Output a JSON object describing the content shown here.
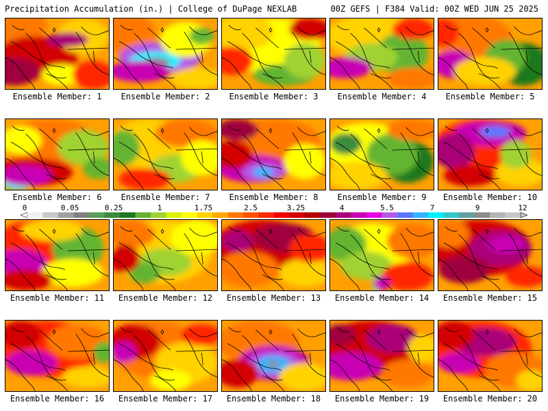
{
  "header": {
    "left": "Precipitation Accumulation (in.) | College of DuPage NEXLAB",
    "right": "00Z GEFS | F384 Valid: 00Z WED JUN 25 2025"
  },
  "colorbar": {
    "tick_labels": [
      "0",
      "0.05",
      "0.25",
      "1",
      "1.75",
      "2.5",
      "3.25",
      "4",
      "5.5",
      "7",
      "9",
      "12"
    ],
    "colors": [
      "#f0f0f0",
      "#c8c8c8",
      "#a0a0a0",
      "#808080",
      "#5aa05a",
      "#3c8c3c",
      "#1e781e",
      "#64b432",
      "#a0d232",
      "#dcf000",
      "#ffff00",
      "#ffd200",
      "#ffaa00",
      "#ff7800",
      "#ff5000",
      "#ff2800",
      "#f00000",
      "#d20000",
      "#b40000",
      "#a0003c",
      "#aa0078",
      "#c800b4",
      "#e600e6",
      "#b45ae6",
      "#5a78ff",
      "#32b4ff",
      "#00f0ff",
      "#32c8c8",
      "#64a0a0",
      "#8c8c8c",
      "#b4b4b4",
      "#c8c8c8"
    ]
  },
  "panels": [
    {
      "label": "Ensemble Member: 1",
      "blobs": [
        [
          "#ff7800",
          0.05,
          0.1,
          0.35,
          0.3
        ],
        [
          "#d20000",
          0.3,
          0.55,
          0.4,
          0.3
        ],
        [
          "#a0003c",
          0.08,
          0.75,
          0.25,
          0.2
        ],
        [
          "#ffd200",
          0.75,
          0.25,
          0.25,
          0.25
        ],
        [
          "#ffff00",
          0.55,
          0.8,
          0.2,
          0.15
        ],
        [
          "#ff2800",
          0.85,
          0.8,
          0.2,
          0.2
        ],
        [
          "#aa0078",
          0.6,
          0.3,
          0.2,
          0.1
        ]
      ]
    },
    {
      "label": "Ensemble Member: 2",
      "blobs": [
        [
          "#ff7800",
          0.1,
          0.2,
          0.3,
          0.3
        ],
        [
          "#b45ae6",
          0.45,
          0.55,
          0.4,
          0.22
        ],
        [
          "#00f0ff",
          0.4,
          0.6,
          0.25,
          0.13
        ],
        [
          "#8c8c8c",
          0.42,
          0.62,
          0.12,
          0.07
        ],
        [
          "#c800b4",
          0.25,
          0.75,
          0.3,
          0.15
        ],
        [
          "#ffff00",
          0.7,
          0.3,
          0.25,
          0.25
        ],
        [
          "#64b432",
          0.85,
          0.25,
          0.12,
          0.12
        ],
        [
          "#ffd200",
          0.8,
          0.85,
          0.25,
          0.15
        ]
      ]
    },
    {
      "label": "Ensemble Member: 3",
      "blobs": [
        [
          "#ffff00",
          0.5,
          0.4,
          0.45,
          0.4
        ],
        [
          "#ffd200",
          0.2,
          0.2,
          0.3,
          0.25
        ],
        [
          "#64b432",
          0.6,
          0.8,
          0.3,
          0.15
        ],
        [
          "#a0d232",
          0.8,
          0.6,
          0.2,
          0.25
        ],
        [
          "#ff2800",
          0.1,
          0.6,
          0.2,
          0.2
        ],
        [
          "#d20000",
          0.85,
          0.15,
          0.2,
          0.15
        ]
      ]
    },
    {
      "label": "Ensemble Member: 4",
      "blobs": [
        [
          "#ffd200",
          0.4,
          0.25,
          0.45,
          0.3
        ],
        [
          "#64b432",
          0.7,
          0.5,
          0.25,
          0.3
        ],
        [
          "#a0d232",
          0.4,
          0.55,
          0.25,
          0.2
        ],
        [
          "#c800b4",
          0.15,
          0.7,
          0.25,
          0.15
        ],
        [
          "#ff2800",
          0.8,
          0.15,
          0.2,
          0.15
        ],
        [
          "#ff7800",
          0.8,
          0.85,
          0.25,
          0.15
        ]
      ]
    },
    {
      "label": "Ensemble Member: 5",
      "blobs": [
        [
          "#ff7800",
          0.3,
          0.25,
          0.4,
          0.3
        ],
        [
          "#1e781e",
          0.82,
          0.65,
          0.25,
          0.3
        ],
        [
          "#64b432",
          0.65,
          0.55,
          0.2,
          0.25
        ],
        [
          "#c800b4",
          0.15,
          0.65,
          0.2,
          0.2
        ],
        [
          "#ffd200",
          0.45,
          0.75,
          0.3,
          0.2
        ],
        [
          "#ff2800",
          0.05,
          0.2,
          0.15,
          0.2
        ]
      ]
    },
    {
      "label": "Ensemble Member: 6",
      "blobs": [
        [
          "#ff7800",
          0.45,
          0.35,
          0.45,
          0.35
        ],
        [
          "#a0d232",
          0.75,
          0.4,
          0.25,
          0.25
        ],
        [
          "#d20000",
          0.25,
          0.75,
          0.4,
          0.2
        ],
        [
          "#00f0ff",
          0.12,
          0.88,
          0.15,
          0.12
        ],
        [
          "#c800b4",
          0.2,
          0.8,
          0.25,
          0.15
        ],
        [
          "#ffff00",
          0.15,
          0.3,
          0.2,
          0.2
        ],
        [
          "#64b432",
          0.9,
          0.7,
          0.15,
          0.15
        ]
      ]
    },
    {
      "label": "Ensemble Member: 7",
      "blobs": [
        [
          "#ffd200",
          0.35,
          0.35,
          0.4,
          0.35
        ],
        [
          "#64b432",
          0.1,
          0.4,
          0.15,
          0.25
        ],
        [
          "#a0d232",
          0.6,
          0.7,
          0.25,
          0.2
        ],
        [
          "#ff7800",
          0.7,
          0.2,
          0.3,
          0.2
        ],
        [
          "#ff2800",
          0.3,
          0.85,
          0.25,
          0.15
        ],
        [
          "#ffff00",
          0.85,
          0.55,
          0.2,
          0.25
        ]
      ]
    },
    {
      "label": "Ensemble Member: 8",
      "blobs": [
        [
          "#ff7800",
          0.5,
          0.3,
          0.45,
          0.3
        ],
        [
          "#c800b4",
          0.3,
          0.7,
          0.35,
          0.2
        ],
        [
          "#b45ae6",
          0.4,
          0.75,
          0.2,
          0.13
        ],
        [
          "#32b4ff",
          0.4,
          0.75,
          0.1,
          0.07
        ],
        [
          "#d20000",
          0.1,
          0.5,
          0.2,
          0.2
        ],
        [
          "#ffff00",
          0.8,
          0.6,
          0.2,
          0.25
        ],
        [
          "#a0003c",
          0.15,
          0.15,
          0.2,
          0.15
        ]
      ]
    },
    {
      "label": "Ensemble Member: 9",
      "blobs": [
        [
          "#ffff00",
          0.35,
          0.4,
          0.4,
          0.35
        ],
        [
          "#1e781e",
          0.75,
          0.6,
          0.25,
          0.3
        ],
        [
          "#64b432",
          0.6,
          0.5,
          0.25,
          0.3
        ],
        [
          "#3c8c3c",
          0.15,
          0.35,
          0.15,
          0.15
        ],
        [
          "#ffd200",
          0.25,
          0.8,
          0.3,
          0.2
        ],
        [
          "#ff7800",
          0.8,
          0.15,
          0.25,
          0.15
        ]
      ]
    },
    {
      "label": "Ensemble Member: 10",
      "blobs": [
        [
          "#ff2800",
          0.4,
          0.4,
          0.45,
          0.4
        ],
        [
          "#c800b4",
          0.5,
          0.2,
          0.35,
          0.18
        ],
        [
          "#5a78ff",
          0.55,
          0.18,
          0.15,
          0.08
        ],
        [
          "#aa0078",
          0.15,
          0.45,
          0.2,
          0.25
        ],
        [
          "#ffd200",
          0.8,
          0.75,
          0.25,
          0.2
        ],
        [
          "#a0d232",
          0.75,
          0.5,
          0.15,
          0.2
        ],
        [
          "#d20000",
          0.3,
          0.8,
          0.25,
          0.15
        ]
      ]
    },
    {
      "label": "Ensemble Member: 11",
      "blobs": [
        [
          "#ff2800",
          0.3,
          0.35,
          0.4,
          0.35
        ],
        [
          "#c800b4",
          0.15,
          0.6,
          0.25,
          0.18
        ],
        [
          "#64b432",
          0.7,
          0.4,
          0.25,
          0.3
        ],
        [
          "#ffff00",
          0.65,
          0.75,
          0.3,
          0.2
        ],
        [
          "#ffd200",
          0.45,
          0.15,
          0.3,
          0.15
        ],
        [
          "#d20000",
          0.2,
          0.85,
          0.25,
          0.15
        ]
      ]
    },
    {
      "label": "Ensemble Member: 12",
      "blobs": [
        [
          "#ffd200",
          0.45,
          0.45,
          0.5,
          0.45
        ],
        [
          "#a0d232",
          0.5,
          0.6,
          0.25,
          0.2
        ],
        [
          "#64b432",
          0.3,
          0.75,
          0.15,
          0.15
        ],
        [
          "#ff7800",
          0.15,
          0.2,
          0.25,
          0.2
        ],
        [
          "#d20000",
          0.1,
          0.55,
          0.15,
          0.2
        ],
        [
          "#ffff00",
          0.8,
          0.25,
          0.25,
          0.25
        ]
      ]
    },
    {
      "label": "Ensemble Member: 13",
      "blobs": [
        [
          "#d20000",
          0.4,
          0.4,
          0.5,
          0.4
        ],
        [
          "#a0003c",
          0.6,
          0.25,
          0.3,
          0.2
        ],
        [
          "#ff7800",
          0.25,
          0.7,
          0.3,
          0.25
        ],
        [
          "#ffd200",
          0.8,
          0.75,
          0.25,
          0.2
        ],
        [
          "#aa0078",
          0.15,
          0.3,
          0.15,
          0.15
        ],
        [
          "#ff2800",
          0.85,
          0.4,
          0.2,
          0.2
        ]
      ]
    },
    {
      "label": "Ensemble Member: 14",
      "blobs": [
        [
          "#ffff00",
          0.4,
          0.4,
          0.4,
          0.35
        ],
        [
          "#64b432",
          0.15,
          0.35,
          0.2,
          0.25
        ],
        [
          "#a0d232",
          0.35,
          0.65,
          0.25,
          0.2
        ],
        [
          "#ff7800",
          0.8,
          0.3,
          0.25,
          0.25
        ],
        [
          "#ff2800",
          0.75,
          0.8,
          0.25,
          0.2
        ],
        [
          "#00f0ff",
          0.45,
          0.92,
          0.04,
          0.1
        ],
        [
          "#c800b4",
          0.5,
          0.9,
          0.08,
          0.1
        ]
      ]
    },
    {
      "label": "Ensemble Member: 15",
      "blobs": [
        [
          "#d20000",
          0.4,
          0.4,
          0.5,
          0.4
        ],
        [
          "#aa0078",
          0.6,
          0.4,
          0.3,
          0.25
        ],
        [
          "#c800b4",
          0.65,
          0.35,
          0.18,
          0.12
        ],
        [
          "#a0003c",
          0.25,
          0.7,
          0.25,
          0.2
        ],
        [
          "#ff7800",
          0.1,
          0.2,
          0.2,
          0.2
        ],
        [
          "#ff2800",
          0.85,
          0.8,
          0.2,
          0.15
        ]
      ]
    },
    {
      "label": "Ensemble Member: 16",
      "blobs": [
        [
          "#ff2800",
          0.4,
          0.4,
          0.5,
          0.4
        ],
        [
          "#c800b4",
          0.25,
          0.6,
          0.25,
          0.18
        ],
        [
          "#ff7800",
          0.7,
          0.3,
          0.3,
          0.25
        ],
        [
          "#d20000",
          0.15,
          0.2,
          0.2,
          0.2
        ],
        [
          "#ffd200",
          0.8,
          0.8,
          0.25,
          0.15
        ],
        [
          "#64b432",
          0.95,
          0.45,
          0.1,
          0.15
        ]
      ]
    },
    {
      "label": "Ensemble Member: 17",
      "blobs": [
        [
          "#ff7800",
          0.4,
          0.4,
          0.45,
          0.4
        ],
        [
          "#d20000",
          0.2,
          0.3,
          0.25,
          0.25
        ],
        [
          "#ffd200",
          0.7,
          0.6,
          0.3,
          0.3
        ],
        [
          "#c800b4",
          0.1,
          0.45,
          0.12,
          0.15
        ],
        [
          "#ff2800",
          0.85,
          0.2,
          0.2,
          0.15
        ],
        [
          "#ffff00",
          0.55,
          0.85,
          0.2,
          0.15
        ]
      ]
    },
    {
      "label": "Ensemble Member: 18",
      "blobs": [
        [
          "#ff7800",
          0.35,
          0.3,
          0.4,
          0.3
        ],
        [
          "#c800b4",
          0.5,
          0.6,
          0.35,
          0.25
        ],
        [
          "#b45ae6",
          0.5,
          0.62,
          0.25,
          0.18
        ],
        [
          "#32b4ff",
          0.5,
          0.62,
          0.16,
          0.12
        ],
        [
          "#8c8c8c",
          0.5,
          0.62,
          0.06,
          0.05
        ],
        [
          "#ffd200",
          0.8,
          0.8,
          0.25,
          0.2
        ],
        [
          "#d20000",
          0.15,
          0.75,
          0.2,
          0.2
        ]
      ]
    },
    {
      "label": "Ensemble Member: 19",
      "blobs": [
        [
          "#d20000",
          0.4,
          0.4,
          0.5,
          0.4
        ],
        [
          "#c800b4",
          0.2,
          0.65,
          0.3,
          0.2
        ],
        [
          "#aa0078",
          0.6,
          0.25,
          0.25,
          0.2
        ],
        [
          "#ff7800",
          0.75,
          0.75,
          0.25,
          0.2
        ],
        [
          "#ffd200",
          0.9,
          0.4,
          0.15,
          0.2
        ],
        [
          "#a0003c",
          0.1,
          0.2,
          0.15,
          0.15
        ]
      ]
    },
    {
      "label": "Ensemble Member: 20",
      "blobs": [
        [
          "#ff2800",
          0.4,
          0.4,
          0.5,
          0.4
        ],
        [
          "#aa0078",
          0.45,
          0.3,
          0.3,
          0.2
        ],
        [
          "#c800b4",
          0.2,
          0.6,
          0.2,
          0.15
        ],
        [
          "#ff7800",
          0.75,
          0.7,
          0.3,
          0.25
        ],
        [
          "#ffd200",
          0.9,
          0.85,
          0.15,
          0.15
        ],
        [
          "#d20000",
          0.15,
          0.2,
          0.2,
          0.2
        ]
      ]
    }
  ]
}
